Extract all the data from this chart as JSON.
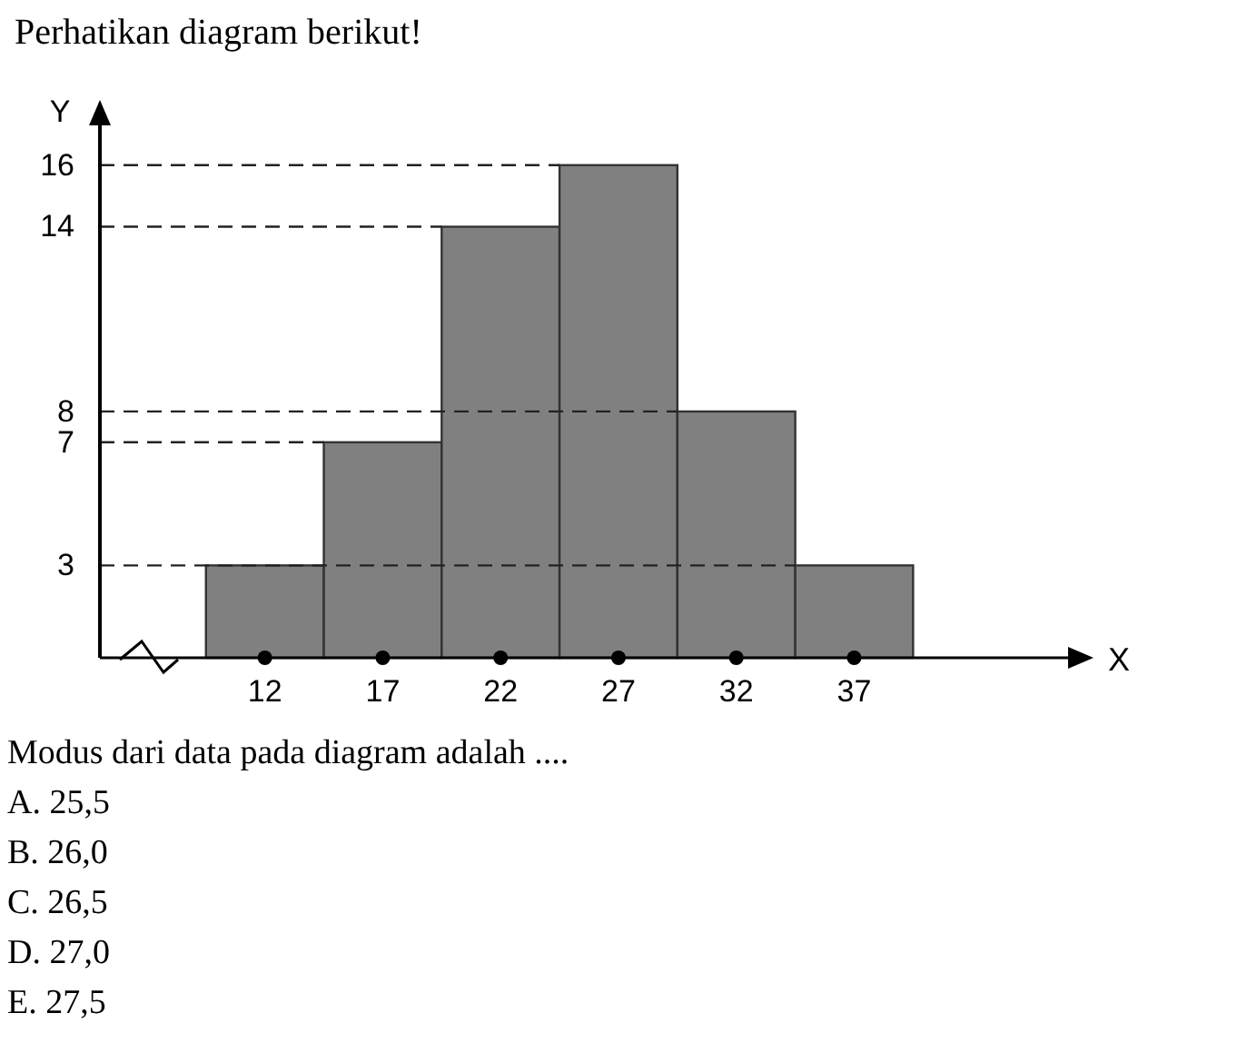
{
  "chart_data": {
    "type": "histogram",
    "title": "Perhatikan diagram berikut!",
    "xlabel": "X",
    "ylabel": "Y",
    "bins": [
      9.5,
      14.5,
      19.5,
      24.5,
      29.5,
      34.5,
      39.5
    ],
    "values": [
      3,
      7,
      14,
      16,
      8,
      3
    ],
    "color": "#808080",
    "xlim": [
      5,
      47
    ],
    "ylim": [
      0,
      18
    ],
    "xticks": [
      12,
      17,
      22,
      27,
      32,
      37
    ],
    "yticks": [
      3,
      7,
      8,
      14,
      16
    ],
    "ref_lines": [
      {
        "axis": "y",
        "value": 16,
        "line_style": "dashed"
      },
      {
        "axis": "y",
        "value": 14,
        "line_style": "dashed"
      },
      {
        "axis": "y",
        "value": 8,
        "line_style": "dashed"
      },
      {
        "axis": "y",
        "value": 7,
        "line_style": "dashed"
      },
      {
        "axis": "y",
        "value": 3,
        "line_style": "dashed"
      }
    ],
    "annotations": [
      "Modus dari data pada diagram adalah ....",
      "A. 25,5",
      "B. 26,0",
      "C. 26,5",
      "D. 27,0",
      "E. 27,5"
    ]
  }
}
